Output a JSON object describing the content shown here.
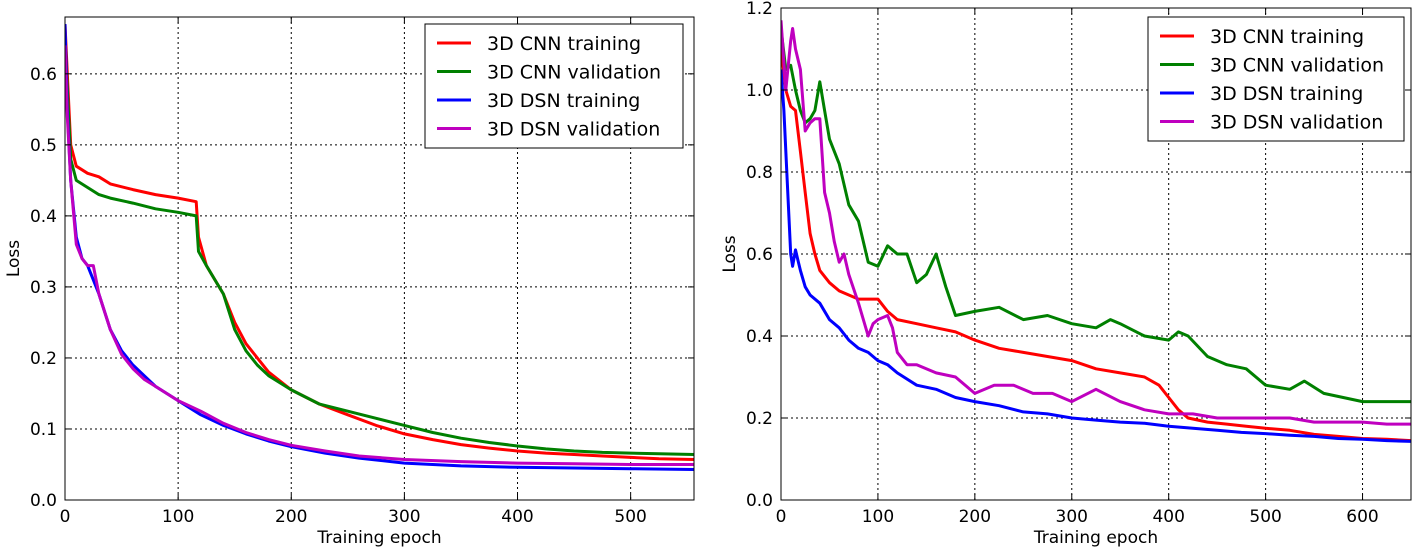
{
  "chart_data": [
    {
      "type": "line",
      "xlabel": "Training epoch",
      "ylabel": "Loss",
      "xlim": [
        0,
        556
      ],
      "ylim": [
        0,
        0.68
      ],
      "xticks": [
        0,
        100,
        200,
        300,
        400,
        500
      ],
      "yticks": [
        0.0,
        0.1,
        0.2,
        0.3,
        0.4,
        0.5,
        0.6
      ],
      "ytick_labels": [
        "0.0",
        "0.1",
        "0.2",
        "0.3",
        "0.4",
        "0.5",
        "0.6"
      ],
      "grid": true,
      "legend_position": "top-right",
      "series": [
        {
          "name": "3D CNN training",
          "color": "#ff0000",
          "x": [
            0,
            2,
            5,
            10,
            20,
            30,
            40,
            60,
            80,
            100,
            116,
            118,
            125,
            140,
            150,
            160,
            170,
            180,
            200,
            225,
            250,
            275,
            300,
            325,
            350,
            375,
            400,
            425,
            450,
            475,
            500,
            525,
            556
          ],
          "y": [
            0.67,
            0.6,
            0.5,
            0.47,
            0.46,
            0.455,
            0.445,
            0.437,
            0.43,
            0.425,
            0.42,
            0.37,
            0.33,
            0.29,
            0.25,
            0.22,
            0.2,
            0.18,
            0.155,
            0.135,
            0.12,
            0.105,
            0.093,
            0.085,
            0.078,
            0.073,
            0.069,
            0.066,
            0.064,
            0.062,
            0.06,
            0.058,
            0.057
          ]
        },
        {
          "name": "3D CNN validation",
          "color": "#008000",
          "x": [
            0,
            2,
            5,
            10,
            20,
            30,
            40,
            60,
            80,
            100,
            116,
            118,
            125,
            140,
            150,
            160,
            170,
            180,
            200,
            225,
            250,
            275,
            300,
            325,
            350,
            375,
            400,
            425,
            450,
            475,
            500,
            525,
            556
          ],
          "y": [
            0.65,
            0.58,
            0.48,
            0.45,
            0.44,
            0.43,
            0.425,
            0.418,
            0.41,
            0.405,
            0.4,
            0.35,
            0.33,
            0.29,
            0.24,
            0.21,
            0.19,
            0.175,
            0.155,
            0.135,
            0.125,
            0.115,
            0.105,
            0.095,
            0.087,
            0.081,
            0.076,
            0.072,
            0.069,
            0.067,
            0.066,
            0.065,
            0.064
          ]
        },
        {
          "name": "3D DSN training",
          "color": "#0000ff",
          "x": [
            0,
            2,
            5,
            10,
            15,
            20,
            25,
            30,
            40,
            50,
            60,
            70,
            80,
            90,
            100,
            120,
            140,
            160,
            180,
            200,
            230,
            260,
            300,
            350,
            400,
            450,
            500,
            556
          ],
          "y": [
            0.67,
            0.55,
            0.45,
            0.37,
            0.34,
            0.33,
            0.31,
            0.29,
            0.24,
            0.21,
            0.19,
            0.175,
            0.16,
            0.15,
            0.14,
            0.12,
            0.105,
            0.093,
            0.083,
            0.075,
            0.066,
            0.059,
            0.052,
            0.048,
            0.046,
            0.045,
            0.044,
            0.043
          ]
        },
        {
          "name": "3D DSN validation",
          "color": "#bf00bf",
          "x": [
            0,
            2,
            5,
            10,
            15,
            20,
            25,
            30,
            40,
            50,
            60,
            70,
            80,
            90,
            100,
            120,
            140,
            160,
            180,
            200,
            230,
            260,
            300,
            350,
            400,
            450,
            500,
            556
          ],
          "y": [
            0.64,
            0.54,
            0.45,
            0.36,
            0.34,
            0.33,
            0.33,
            0.29,
            0.24,
            0.205,
            0.185,
            0.17,
            0.16,
            0.15,
            0.14,
            0.125,
            0.108,
            0.095,
            0.085,
            0.077,
            0.069,
            0.062,
            0.057,
            0.054,
            0.052,
            0.051,
            0.05,
            0.05
          ]
        }
      ]
    },
    {
      "type": "line",
      "xlabel": "Training epoch",
      "ylabel": "Loss",
      "xlim": [
        0,
        650
      ],
      "ylim": [
        0,
        1.2
      ],
      "xticks": [
        0,
        100,
        200,
        300,
        400,
        500,
        600
      ],
      "yticks": [
        0.0,
        0.2,
        0.4,
        0.6,
        0.8,
        1.0,
        1.2
      ],
      "ytick_labels": [
        "0.0",
        "0.2",
        "0.4",
        "0.6",
        "0.8",
        "1.0",
        "1.2"
      ],
      "grid": true,
      "legend_position": "top-right",
      "series": [
        {
          "name": "3D CNN training",
          "color": "#ff0000",
          "x": [
            0,
            5,
            10,
            15,
            20,
            25,
            30,
            35,
            40,
            50,
            60,
            70,
            80,
            90,
            100,
            110,
            120,
            140,
            160,
            180,
            200,
            225,
            250,
            275,
            300,
            325,
            350,
            375,
            390,
            400,
            410,
            420,
            440,
            460,
            480,
            500,
            525,
            550,
            575,
            600,
            625,
            650
          ],
          "y": [
            1.1,
            1.0,
            0.96,
            0.95,
            0.85,
            0.75,
            0.65,
            0.6,
            0.56,
            0.53,
            0.51,
            0.5,
            0.49,
            0.49,
            0.49,
            0.46,
            0.44,
            0.43,
            0.42,
            0.41,
            0.39,
            0.37,
            0.36,
            0.35,
            0.34,
            0.32,
            0.31,
            0.3,
            0.28,
            0.25,
            0.22,
            0.2,
            0.19,
            0.185,
            0.18,
            0.175,
            0.17,
            0.16,
            0.155,
            0.15,
            0.148,
            0.145
          ]
        },
        {
          "name": "3D CNN validation",
          "color": "#008000",
          "x": [
            0,
            5,
            10,
            15,
            20,
            25,
            30,
            35,
            40,
            45,
            50,
            60,
            70,
            80,
            90,
            100,
            110,
            120,
            130,
            140,
            150,
            160,
            170,
            180,
            200,
            225,
            250,
            275,
            300,
            325,
            340,
            350,
            375,
            400,
            410,
            420,
            440,
            460,
            480,
            500,
            525,
            540,
            560,
            580,
            600,
            625,
            650
          ],
          "y": [
            1.15,
            1.05,
            1.06,
            1.0,
            0.95,
            0.92,
            0.93,
            0.95,
            1.02,
            0.95,
            0.88,
            0.82,
            0.72,
            0.68,
            0.58,
            0.57,
            0.62,
            0.6,
            0.6,
            0.53,
            0.55,
            0.6,
            0.52,
            0.45,
            0.46,
            0.47,
            0.44,
            0.45,
            0.43,
            0.42,
            0.44,
            0.43,
            0.4,
            0.39,
            0.41,
            0.4,
            0.35,
            0.33,
            0.32,
            0.28,
            0.27,
            0.29,
            0.26,
            0.25,
            0.24,
            0.24,
            0.24
          ]
        },
        {
          "name": "3D DSN training",
          "color": "#0000ff",
          "x": [
            0,
            3,
            6,
            10,
            12,
            15,
            18,
            20,
            25,
            30,
            40,
            50,
            60,
            70,
            80,
            90,
            100,
            110,
            120,
            140,
            160,
            180,
            200,
            225,
            250,
            275,
            300,
            325,
            350,
            375,
            400,
            425,
            450,
            475,
            500,
            525,
            550,
            575,
            600,
            625,
            650
          ],
          "y": [
            1.05,
            0.95,
            0.8,
            0.6,
            0.57,
            0.61,
            0.58,
            0.56,
            0.52,
            0.5,
            0.48,
            0.44,
            0.42,
            0.39,
            0.37,
            0.36,
            0.34,
            0.33,
            0.31,
            0.28,
            0.27,
            0.25,
            0.24,
            0.23,
            0.215,
            0.21,
            0.2,
            0.195,
            0.19,
            0.187,
            0.18,
            0.175,
            0.17,
            0.165,
            0.162,
            0.158,
            0.155,
            0.15,
            0.148,
            0.145,
            0.143
          ]
        },
        {
          "name": "3D DSN validation",
          "color": "#bf00bf",
          "x": [
            0,
            5,
            10,
            12,
            15,
            20,
            25,
            30,
            35,
            40,
            45,
            50,
            55,
            60,
            65,
            70,
            80,
            90,
            95,
            100,
            110,
            115,
            120,
            130,
            140,
            160,
            180,
            200,
            220,
            240,
            260,
            280,
            300,
            325,
            350,
            375,
            400,
            425,
            450,
            475,
            500,
            525,
            550,
            575,
            600,
            625,
            650
          ],
          "y": [
            1.17,
            1.0,
            1.12,
            1.15,
            1.1,
            1.05,
            0.9,
            0.92,
            0.93,
            0.93,
            0.75,
            0.7,
            0.63,
            0.58,
            0.6,
            0.55,
            0.48,
            0.4,
            0.43,
            0.44,
            0.45,
            0.42,
            0.36,
            0.33,
            0.33,
            0.31,
            0.3,
            0.26,
            0.28,
            0.28,
            0.26,
            0.26,
            0.24,
            0.27,
            0.24,
            0.22,
            0.21,
            0.21,
            0.2,
            0.2,
            0.2,
            0.2,
            0.19,
            0.19,
            0.19,
            0.185,
            0.185
          ]
        }
      ]
    }
  ]
}
